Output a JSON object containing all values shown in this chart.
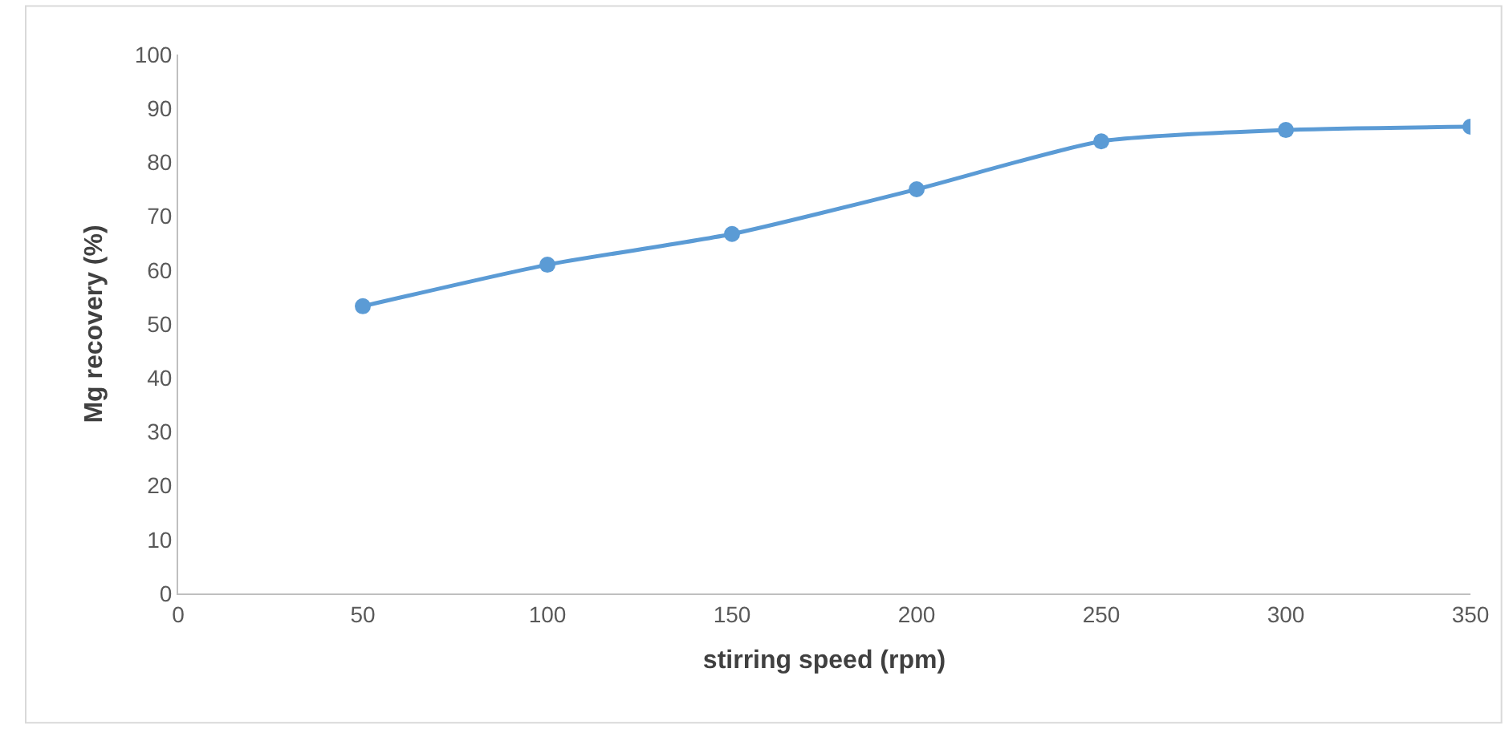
{
  "chart_data": {
    "type": "line",
    "xlabel": "stirring speed (rpm)",
    "ylabel": "Mg recovery (%)",
    "x": [
      50,
      100,
      150,
      200,
      250,
      300,
      350
    ],
    "series": [
      {
        "color": "#5b9bd5",
        "values": [
          53.3,
          61.0,
          66.7,
          75.0,
          83.9,
          86.0,
          86.6
        ]
      }
    ],
    "xlim": [
      0,
      350
    ],
    "xticks": [
      0,
      50,
      100,
      150,
      200,
      250,
      300,
      350
    ],
    "ylim": [
      0,
      100
    ],
    "yticks": [
      0,
      10,
      20,
      30,
      40,
      50,
      60,
      70,
      80,
      90,
      100
    ],
    "marker": "circle",
    "line_style": "solid"
  }
}
